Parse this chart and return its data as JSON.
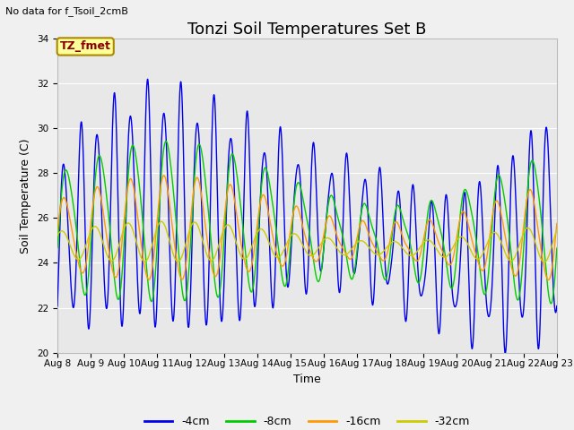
{
  "title": "Tonzi Soil Temperatures Set B",
  "subtitle": "No data for f_Tsoil_2cmB",
  "xlabel": "Time",
  "ylabel": "Soil Temperature (C)",
  "ylim": [
    20,
    34
  ],
  "yticks": [
    20,
    22,
    24,
    26,
    28,
    30,
    32,
    34
  ],
  "xlim": [
    0,
    15
  ],
  "xtick_labels": [
    "Aug 8",
    "Aug 9",
    "Aug 10",
    "Aug 11",
    "Aug 12",
    "Aug 13",
    "Aug 14",
    "Aug 15",
    "Aug 16",
    "Aug 17",
    "Aug 18",
    "Aug 19",
    "Aug 20",
    "Aug 21",
    "Aug 22",
    "Aug 23"
  ],
  "legend_labels": [
    "-4cm",
    "-8cm",
    "-16cm",
    "-32cm"
  ],
  "line_colors": [
    "#0000ee",
    "#00cc00",
    "#ff9900",
    "#cccc00"
  ],
  "annotation_text": "TZ_fmet",
  "annotation_box_facecolor": "#ffff99",
  "annotation_text_color": "#880000",
  "annotation_edge_color": "#aa8800",
  "axes_facecolor": "#e8e8e8",
  "fig_facecolor": "#f0f0f0",
  "grid_color": "#ffffff",
  "title_fontsize": 13,
  "label_fontsize": 9,
  "tick_fontsize": 7.5,
  "legend_fontsize": 9,
  "subtitle_fontsize": 8
}
